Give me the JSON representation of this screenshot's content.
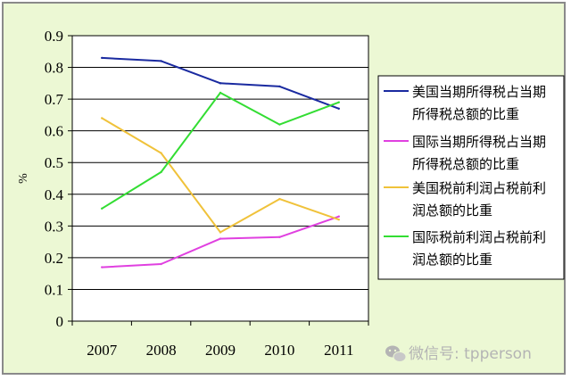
{
  "chart_data": {
    "type": "line",
    "categories": [
      "2007",
      "2008",
      "2009",
      "2010",
      "2011"
    ],
    "ylim": [
      0,
      0.9
    ],
    "yticks": [
      "0",
      "0.1",
      "0.2",
      "0.3",
      "0.4",
      "0.5",
      "0.6",
      "0.7",
      "0.8",
      "0.9"
    ],
    "ylabel": "%",
    "grid": true,
    "legend_position": "right",
    "series": [
      {
        "name_lines": [
          "美国当期所得税占当期",
          "所得税总额的比重"
        ],
        "color": "#1a2aa0",
        "values": [
          0.83,
          0.82,
          0.75,
          0.74,
          0.67
        ]
      },
      {
        "name_lines": [
          "国际当期所得税占当期",
          "所得税总额的比重"
        ],
        "color": "#e040e0",
        "values": [
          0.17,
          0.18,
          0.26,
          0.265,
          0.33
        ]
      },
      {
        "name_lines": [
          "美国税前利润占税前利",
          "润总额的比重"
        ],
        "color": "#f0c23a",
        "values": [
          0.64,
          0.53,
          0.28,
          0.385,
          0.32
        ]
      },
      {
        "name_lines": [
          "国际税前利润占税前利",
          "润总额的比重"
        ],
        "color": "#33dd33",
        "values": [
          0.355,
          0.47,
          0.72,
          0.62,
          0.69
        ]
      }
    ]
  },
  "watermark": {
    "icon": "wechat-icon",
    "text": "微信号: tpperson"
  }
}
